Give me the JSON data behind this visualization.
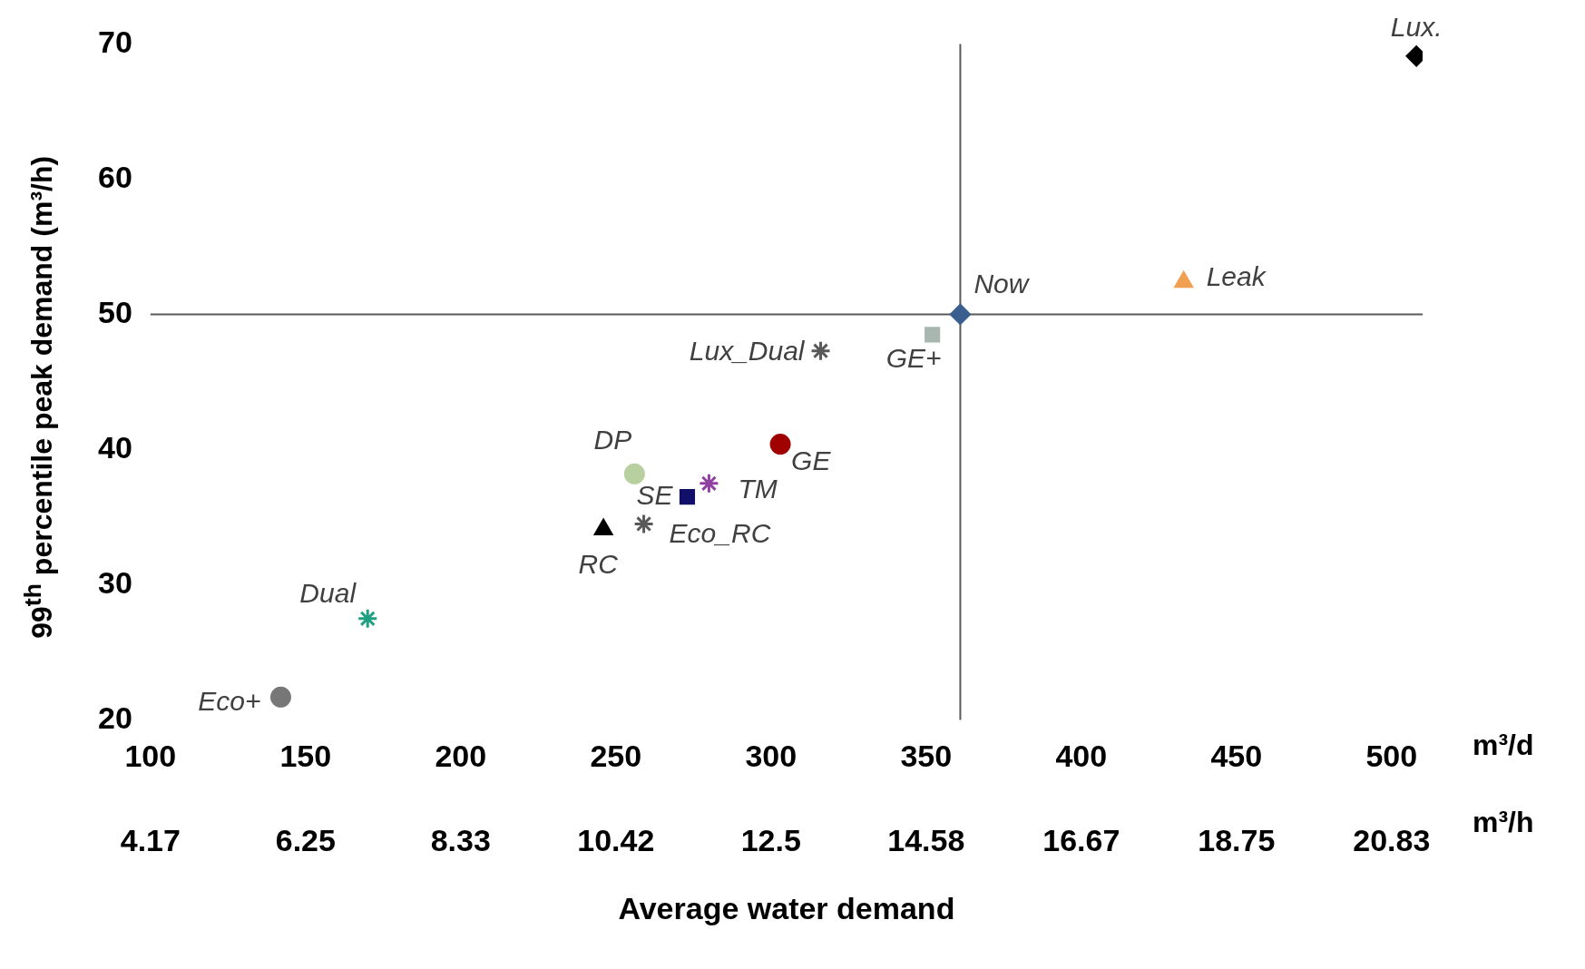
{
  "chart_data": {
    "type": "scatter",
    "xlabel": "Average water demand",
    "ylabel": "99$^{th}$ percentile peak demand (m³/h)",
    "xlim": [
      100,
      510
    ],
    "xticks": [
      100,
      150,
      200,
      250,
      300,
      350,
      400,
      450,
      500
    ],
    "x2lim": [
      4.1667,
      21.25
    ],
    "x2ticks": [
      {
        "value": 4.1667,
        "label": "4.17"
      },
      {
        "value": 6.25,
        "label": "6.25"
      },
      {
        "value": 8.3333,
        "label": "8.33"
      },
      {
        "value": 10.4167,
        "label": "10.42"
      },
      {
        "value": 12.5,
        "label": "12.5"
      },
      {
        "value": 14.5833,
        "label": "14.58"
      },
      {
        "value": 16.6667,
        "label": "16.67"
      },
      {
        "value": 18.75,
        "label": "18.75"
      },
      {
        "value": 20.8333,
        "label": "20.83"
      }
    ],
    "ylim": [
      20,
      70
    ],
    "yticks": [
      20,
      30,
      40,
      50,
      60,
      70
    ],
    "grid": false,
    "legend": false,
    "annotations": [
      "m³/d",
      "m³/h"
    ],
    "ref_lines": [
      {
        "axis": "y",
        "value": 50,
        "color": "#595959"
      },
      {
        "axis": "x",
        "value": 361,
        "color": "#595959"
      }
    ],
    "series": [
      {
        "name": "Lux.",
        "color": "#000000",
        "marker": "diamond",
        "x": [
          508
        ],
        "values": [
          69.1
        ]
      },
      {
        "name": "Leak",
        "color": "#f0a050",
        "marker": "triangle",
        "x": [
          433
        ],
        "values": [
          52.4
        ]
      },
      {
        "name": "Now",
        "color": "#3a5f8f",
        "marker": "diamond",
        "x": [
          361
        ],
        "values": [
          50
        ]
      },
      {
        "name": "GE+",
        "color": "#a8b8b0",
        "marker": "square",
        "x": [
          352
        ],
        "values": [
          48.5
        ]
      },
      {
        "name": "Lux_Dual",
        "color": "#595959",
        "marker": "cross",
        "x": [
          316
        ],
        "values": [
          47.3
        ]
      },
      {
        "name": "GE",
        "color": "#a00000",
        "marker": "circle",
        "x": [
          303
        ],
        "values": [
          40.4
        ]
      },
      {
        "name": "TM",
        "color": "#9040a0",
        "marker": "cross",
        "x": [
          280
        ],
        "values": [
          37.5
        ]
      },
      {
        "name": "SE",
        "color": "#10106a",
        "marker": "square",
        "x": [
          273
        ],
        "values": [
          36.5
        ]
      },
      {
        "name": "RC",
        "color": "#000000",
        "marker": "triangle",
        "x": [
          246
        ],
        "values": [
          34.1
        ]
      },
      {
        "name": "Eco_RC",
        "color": "#595959",
        "marker": "cross",
        "x": [
          259
        ],
        "values": [
          34.5
        ]
      },
      {
        "name": "DP",
        "color": "#b8d0a0",
        "marker": "circle",
        "x": [
          256
        ],
        "values": [
          38.2
        ]
      },
      {
        "name": "Dual",
        "color": "#20a080",
        "marker": "cross",
        "x": [
          170
        ],
        "values": [
          27.5
        ]
      },
      {
        "name": "Eco+",
        "color": "#777777",
        "marker": "circle",
        "x": [
          142
        ],
        "values": [
          21.7
        ]
      }
    ]
  }
}
